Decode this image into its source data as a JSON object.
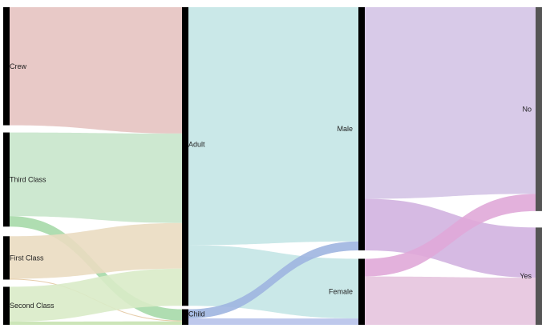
{
  "diagram": {
    "type": "sankey",
    "columns": [
      {
        "id": "class",
        "nodes": [
          {
            "id": "crew",
            "label": "Crew",
            "value": 885,
            "color": "#e6c3c1"
          },
          {
            "id": "third",
            "label": "Third Class",
            "value": 706,
            "color": "#c8e6cb"
          },
          {
            "id": "first",
            "label": "First Class",
            "value": 325,
            "color": "#eadcc1"
          },
          {
            "id": "second",
            "label": "Second Class",
            "value": 285,
            "color": "#d9ebc8"
          }
        ]
      },
      {
        "id": "age",
        "nodes": [
          {
            "id": "adult",
            "label": "Adult",
            "value": 2092,
            "color": "#c4e6e6"
          },
          {
            "id": "child",
            "label": "Child",
            "value": 109,
            "color": "#c4e6e6"
          }
        ]
      },
      {
        "id": "sex",
        "nodes": [
          {
            "id": "male",
            "label": "Male",
            "value": 1731,
            "color": "#c4e6e6"
          },
          {
            "id": "female",
            "label": "Female",
            "value": 470,
            "color": "#c4e6e6"
          }
        ]
      },
      {
        "id": "survived",
        "nodes": [
          {
            "id": "no",
            "label": "No",
            "value": 1490,
            "color": "#d4c4e6"
          },
          {
            "id": "yes",
            "label": "Yes",
            "value": 711,
            "color": "#e6c4de"
          }
        ]
      }
    ],
    "links": [
      {
        "source": "crew",
        "target": "adult",
        "value": 885,
        "color": "#e6c3c1"
      },
      {
        "source": "third",
        "target": "adult",
        "value": 627,
        "color": "#c8e6cb"
      },
      {
        "source": "third",
        "target": "child",
        "value": 79,
        "color": "#a6d9a9"
      },
      {
        "source": "first",
        "target": "adult",
        "value": 319,
        "color": "#eadcc1"
      },
      {
        "source": "first",
        "target": "child",
        "value": 6,
        "color": "#e3c7a0"
      },
      {
        "source": "second",
        "target": "adult",
        "value": 261,
        "color": "#d9ebc8"
      },
      {
        "source": "second",
        "target": "child",
        "value": 24,
        "color": "#c6e2b0"
      },
      {
        "source": "adult",
        "target": "male",
        "value": 1667,
        "color": "#c4e6e6"
      },
      {
        "source": "adult",
        "target": "female",
        "value": 425,
        "color": "#c4e6e6"
      },
      {
        "source": "child",
        "target": "male",
        "value": 64,
        "color": "#9fb5e0"
      },
      {
        "source": "child",
        "target": "female",
        "value": 45,
        "color": "#b7c2ea"
      },
      {
        "source": "male",
        "target": "no",
        "value": 1364,
        "color": "#d4c4e6"
      },
      {
        "source": "male",
        "target": "yes",
        "value": 367,
        "color": "#d1b3e0"
      },
      {
        "source": "female",
        "target": "no",
        "value": 126,
        "color": "#e0a8d8"
      },
      {
        "source": "female",
        "target": "yes",
        "value": 344,
        "color": "#e6c4de"
      }
    ],
    "bar_color": "#000000",
    "end_bar_color": "#555555"
  }
}
